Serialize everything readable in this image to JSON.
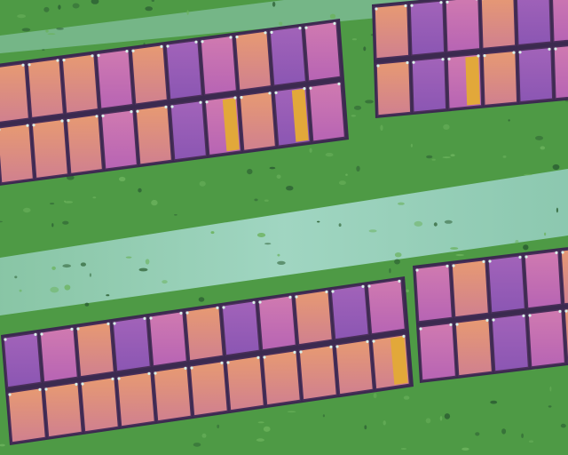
{
  "scene": {
    "kind": "aerial thermal image of solar panel rows",
    "palette": {
      "ground_green": "#4e9a45",
      "ground_dark": "#2f6a32",
      "dirt_path": "#9fd3c6",
      "panel_pink": "#c86fb3",
      "panel_orange": "#e59a6a",
      "panel_edge": "#4a2f5a",
      "hotspot_yellow": "#e2a83a"
    },
    "arrays": [
      {
        "id": "upper-left",
        "rows": 2,
        "cols": 10,
        "hotspots": 2
      },
      {
        "id": "upper-right",
        "rows": 2,
        "cols": 6,
        "hotspots": 1
      },
      {
        "id": "lower-left",
        "rows": 2,
        "cols": 11,
        "hotspots": 1
      },
      {
        "id": "lower-right",
        "rows": 2,
        "cols": 5,
        "hotspots": 0
      }
    ]
  }
}
